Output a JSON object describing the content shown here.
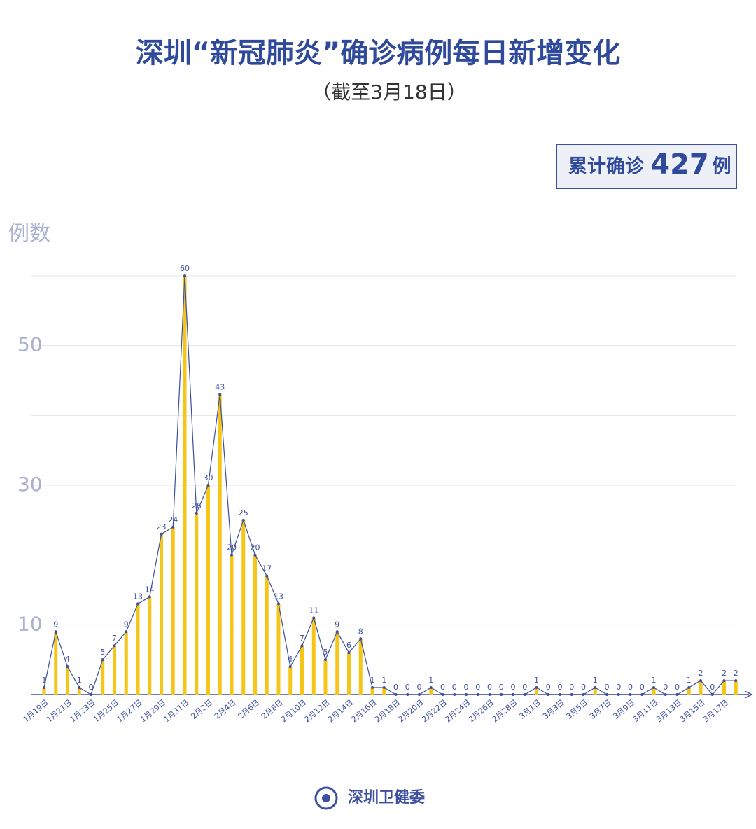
{
  "chart_data": {
    "type": "bar_line",
    "title": "深圳“新冠肺炎”确诊病例每日新增变化",
    "subtitle": "（截至3月18日）",
    "total_box": {
      "prefix": "累计确诊",
      "value": 427,
      "suffix": "例"
    },
    "y_label": "例数",
    "source": "深圳卫健委",
    "categories": [
      "1月19日",
      null,
      "1月21日",
      null,
      "1月23日",
      null,
      "1月25日",
      null,
      "1月27日",
      null,
      "1月29日",
      null,
      "1月31日",
      null,
      "2月2日",
      null,
      "2月4日",
      null,
      "2月6日",
      null,
      "2月8日",
      null,
      "2月10日",
      null,
      "2月12日",
      null,
      "2月14日",
      null,
      "2月16日",
      null,
      "2月18日",
      null,
      "2月20日",
      null,
      "2月22日",
      null,
      "2月24日",
      null,
      "2月26日",
      null,
      "2月28日",
      null,
      "3月1日",
      null,
      "3月3日",
      null,
      "3月5日",
      null,
      "3月7日",
      null,
      "3月9日",
      null,
      "3月11日",
      null,
      "3月13日",
      null,
      "3月15日",
      null,
      "3月17日",
      null
    ],
    "values": [
      1,
      9,
      4,
      1,
      0,
      5,
      7,
      9,
      13,
      14,
      23,
      24,
      60,
      26,
      30,
      43,
      20,
      25,
      20,
      17,
      13,
      4,
      7,
      11,
      5,
      9,
      6,
      8,
      1,
      1,
      0,
      0,
      0,
      1,
      0,
      0,
      0,
      0,
      0,
      0,
      0,
      0,
      1,
      0,
      0,
      0,
      0,
      1,
      0,
      0,
      0,
      0,
      1,
      0,
      0,
      1,
      2,
      0,
      2,
      2
    ],
    "bar_color": "#f5c518",
    "line_color": "#3d4f9f",
    "ylim": [
      0,
      60
    ],
    "yticks": [
      10,
      30,
      50
    ],
    "ygrid": [
      10,
      20,
      30,
      40,
      50,
      60
    ]
  }
}
